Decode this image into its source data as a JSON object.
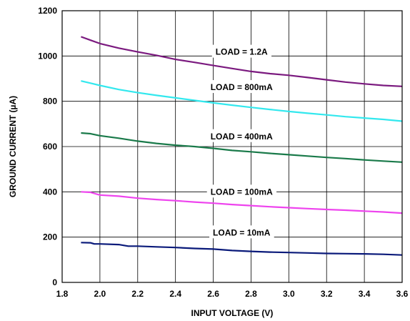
{
  "chart_data": {
    "type": "line",
    "xlabel": "INPUT VOLTAGE (V)",
    "ylabel": "GROUND CURRENT (µA)",
    "xlim": [
      1.8,
      3.6
    ],
    "ylim": [
      0,
      1200
    ],
    "xticks": [
      "1.8",
      "2.0",
      "2.2",
      "2.4",
      "2.6",
      "2.8",
      "3.0",
      "3.2",
      "3.4",
      "3.6"
    ],
    "yticks": [
      "0",
      "200",
      "400",
      "600",
      "800",
      "1000",
      "1200"
    ],
    "grid": true,
    "series": [
      {
        "name": "LOAD = 1.2A",
        "color": "#7b1a7f",
        "points": [
          [
            1.9,
            1085
          ],
          [
            1.95,
            1070
          ],
          [
            2.0,
            1055
          ],
          [
            2.1,
            1035
          ],
          [
            2.2,
            1018
          ],
          [
            2.3,
            1003
          ],
          [
            2.4,
            985
          ],
          [
            2.5,
            972
          ],
          [
            2.6,
            958
          ],
          [
            2.7,
            945
          ],
          [
            2.8,
            932
          ],
          [
            2.9,
            922
          ],
          [
            3.0,
            915
          ],
          [
            3.1,
            905
          ],
          [
            3.2,
            895
          ],
          [
            3.3,
            885
          ],
          [
            3.4,
            877
          ],
          [
            3.5,
            870
          ],
          [
            3.6,
            866
          ]
        ]
      },
      {
        "name": "LOAD = 800mA",
        "color": "#33e8ee",
        "points": [
          [
            1.9,
            890
          ],
          [
            1.95,
            880
          ],
          [
            2.0,
            870
          ],
          [
            2.1,
            852
          ],
          [
            2.2,
            838
          ],
          [
            2.3,
            826
          ],
          [
            2.4,
            815
          ],
          [
            2.5,
            804
          ],
          [
            2.6,
            793
          ],
          [
            2.7,
            783
          ],
          [
            2.8,
            773
          ],
          [
            2.9,
            764
          ],
          [
            3.0,
            755
          ],
          [
            3.1,
            747
          ],
          [
            3.2,
            740
          ],
          [
            3.3,
            732
          ],
          [
            3.4,
            726
          ],
          [
            3.5,
            720
          ],
          [
            3.6,
            712
          ]
        ]
      },
      {
        "name": "LOAD = 400mA",
        "color": "#1a7a4a",
        "points": [
          [
            1.9,
            660
          ],
          [
            1.95,
            657
          ],
          [
            2.0,
            648
          ],
          [
            2.1,
            637
          ],
          [
            2.2,
            624
          ],
          [
            2.3,
            614
          ],
          [
            2.4,
            606
          ],
          [
            2.5,
            600
          ],
          [
            2.6,
            592
          ],
          [
            2.7,
            583
          ],
          [
            2.8,
            577
          ],
          [
            2.9,
            570
          ],
          [
            3.0,
            564
          ],
          [
            3.1,
            558
          ],
          [
            3.2,
            552
          ],
          [
            3.3,
            547
          ],
          [
            3.4,
            541
          ],
          [
            3.5,
            536
          ],
          [
            3.6,
            531
          ]
        ]
      },
      {
        "name": "LOAD = 100mA",
        "color": "#ee44ee",
        "points": [
          [
            1.9,
            400
          ],
          [
            1.95,
            398
          ],
          [
            2.0,
            386
          ],
          [
            2.1,
            381
          ],
          [
            2.2,
            372
          ],
          [
            2.3,
            366
          ],
          [
            2.4,
            361
          ],
          [
            2.5,
            355
          ],
          [
            2.6,
            350
          ],
          [
            2.7,
            344
          ],
          [
            2.8,
            339
          ],
          [
            2.9,
            334
          ],
          [
            3.0,
            330
          ],
          [
            3.1,
            326
          ],
          [
            3.2,
            322
          ],
          [
            3.3,
            319
          ],
          [
            3.4,
            315
          ],
          [
            3.5,
            311
          ],
          [
            3.6,
            306
          ]
        ]
      },
      {
        "name": "LOAD = 10mA",
        "color": "#0a1a7a",
        "points": [
          [
            1.9,
            176
          ],
          [
            1.95,
            175
          ],
          [
            1.97,
            170
          ],
          [
            2.0,
            170
          ],
          [
            2.1,
            167
          ],
          [
            2.15,
            160
          ],
          [
            2.2,
            160
          ],
          [
            2.3,
            157
          ],
          [
            2.4,
            154
          ],
          [
            2.5,
            150
          ],
          [
            2.6,
            147
          ],
          [
            2.7,
            141
          ],
          [
            2.8,
            137
          ],
          [
            2.9,
            134
          ],
          [
            3.0,
            132
          ],
          [
            3.1,
            130
          ],
          [
            3.2,
            128
          ],
          [
            3.3,
            127
          ],
          [
            3.4,
            126
          ],
          [
            3.5,
            124
          ],
          [
            3.6,
            121
          ]
        ]
      }
    ]
  }
}
